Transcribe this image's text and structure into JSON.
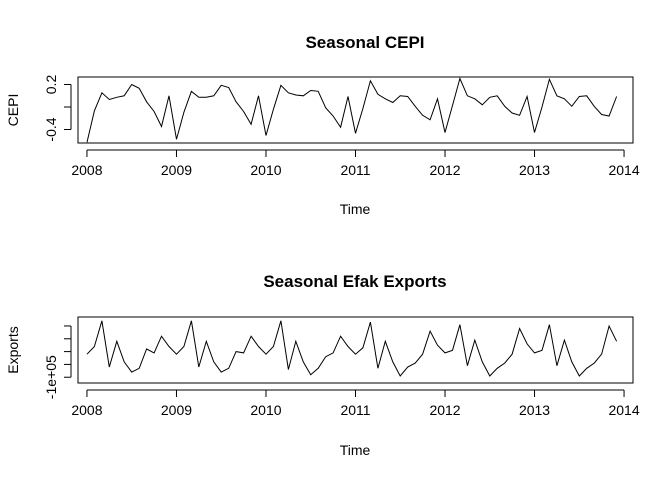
{
  "chart_data": [
    {
      "type": "line",
      "title": "Seasonal CEPI",
      "xlabel": "Time",
      "ylabel": "CEPI",
      "xlim": [
        2007.9,
        2014.1
      ],
      "ylim": [
        -0.58,
        0.3
      ],
      "x_ticks": [
        2008,
        2009,
        2010,
        2011,
        2012,
        2013,
        2014
      ],
      "x_tick_labels": [
        "2008",
        "2009",
        "2010",
        "2011",
        "2012",
        "2013",
        "2014"
      ],
      "y_ticks": [
        -0.4,
        0.2
      ],
      "y_tick_labels": [
        "-0.4",
        "0.2"
      ],
      "y_minor_ticks": [
        -0.1
      ],
      "x_start": 2008,
      "x_step": 0.08333,
      "values": [
        -0.57,
        -0.15,
        0.09,
        0.0,
        0.03,
        0.05,
        0.2,
        0.15,
        -0.03,
        -0.16,
        -0.36,
        0.05,
        -0.53,
        -0.17,
        0.11,
        0.03,
        0.03,
        0.05,
        0.19,
        0.16,
        -0.03,
        -0.16,
        -0.33,
        0.05,
        -0.48,
        -0.13,
        0.19,
        0.09,
        0.06,
        0.05,
        0.12,
        0.11,
        -0.11,
        -0.22,
        -0.37,
        0.04,
        -0.45,
        -0.12,
        0.25,
        0.07,
        0.01,
        -0.04,
        0.05,
        0.04,
        -0.09,
        -0.21,
        -0.27,
        0.01,
        -0.44,
        -0.08,
        0.28,
        0.05,
        0.01,
        -0.07,
        0.03,
        0.05,
        -0.09,
        -0.18,
        -0.21,
        0.04,
        -0.44,
        -0.1,
        0.27,
        0.05,
        0.01,
        -0.09,
        0.04,
        0.05,
        -0.09,
        -0.2,
        -0.22,
        0.04
      ]
    },
    {
      "type": "line",
      "title": "Seasonal Efak Exports",
      "xlabel": "Time",
      "ylabel": "Exports",
      "xlim": [
        2007.9,
        2014.1
      ],
      "ylim": [
        -145000,
        370000
      ],
      "x_ticks": [
        2008,
        2009,
        2010,
        2011,
        2012,
        2013,
        2014
      ],
      "x_tick_labels": [
        "2008",
        "2009",
        "2010",
        "2011",
        "2012",
        "2013",
        "2014"
      ],
      "y_ticks": [
        -100000
      ],
      "y_tick_labels": [
        "-1e+05"
      ],
      "y_minor_ticks": [
        0,
        100000,
        200000,
        300000
      ],
      "x_start": 2008,
      "x_step": 0.08333,
      "values": [
        80000,
        140000,
        340000,
        -20000,
        180000,
        20000,
        -60000,
        -30000,
        120000,
        90000,
        220000,
        140000,
        80000,
        140000,
        340000,
        -20000,
        180000,
        20000,
        -60000,
        -30000,
        100000,
        90000,
        220000,
        140000,
        80000,
        140000,
        340000,
        -40000,
        180000,
        20000,
        -80000,
        -30000,
        60000,
        90000,
        220000,
        140000,
        80000,
        130000,
        330000,
        -30000,
        180000,
        20000,
        -90000,
        -20000,
        10000,
        80000,
        260000,
        150000,
        90000,
        110000,
        310000,
        -10000,
        190000,
        20000,
        -90000,
        -30000,
        10000,
        80000,
        280000,
        160000,
        90000,
        110000,
        310000,
        -10000,
        190000,
        20000,
        -90000,
        -30000,
        10000,
        80000,
        300000,
        180000
      ]
    }
  ]
}
